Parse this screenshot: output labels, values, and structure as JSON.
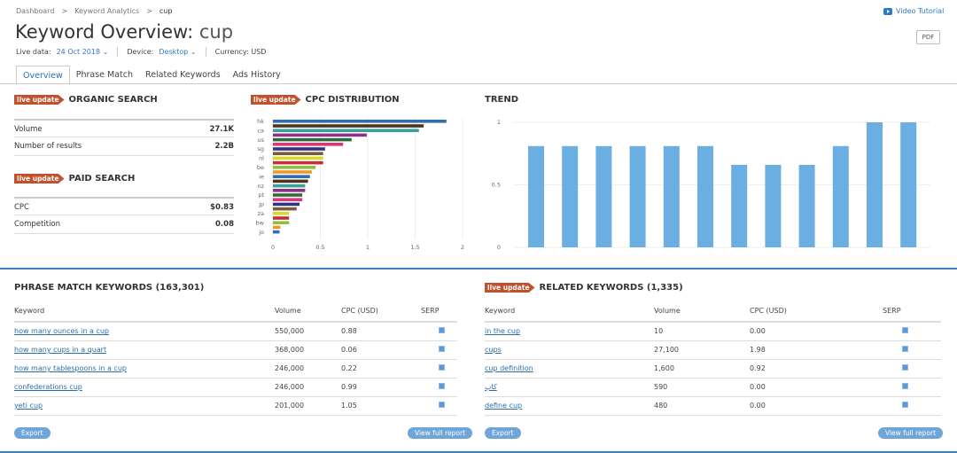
{
  "breadcrumb": [
    "Dashboard",
    "Keyword Analytics",
    "cup"
  ],
  "header": {
    "title_prefix": "Keyword Overview:",
    "keyword": "cup",
    "live_data_label": "Live data:",
    "live_data_value": "24 Oct 2018",
    "device_label": "Device:",
    "device_value": "Desktop",
    "currency": "Currency: USD",
    "video_tutorial": "Video Tutorial",
    "pdf": "PDF"
  },
  "tabs": [
    "Overview",
    "Phrase Match",
    "Related Keywords",
    "Ads History"
  ],
  "badge": "live update",
  "organic": {
    "title": "ORGANIC SEARCH",
    "rows": [
      {
        "label": "Volume",
        "value": "27.1K"
      },
      {
        "label": "Number of results",
        "value": "2.2B"
      }
    ]
  },
  "paid": {
    "title": "PAID SEARCH",
    "rows": [
      {
        "label": "CPC",
        "value": "$0.83"
      },
      {
        "label": "Competition",
        "value": "0.08"
      }
    ]
  },
  "cpc_title": "CPC DISTRIBUTION",
  "trend_title": "TREND",
  "chart_data": [
    {
      "type": "bar",
      "orientation": "horizontal",
      "title": "CPC DISTRIBUTION",
      "categories": [
        "hk",
        "",
        "ca",
        "",
        "us",
        "",
        "sg",
        "",
        "nl",
        "",
        "be",
        "",
        "ie",
        "",
        "nz",
        "",
        "pt",
        "",
        "jp",
        "",
        "za",
        "",
        "bw",
        "",
        "jo"
      ],
      "values": [
        1.83,
        1.59,
        1.54,
        0.99,
        0.83,
        0.74,
        0.55,
        0.53,
        0.53,
        0.53,
        0.45,
        0.41,
        0.39,
        0.37,
        0.34,
        0.34,
        0.31,
        0.31,
        0.28,
        0.25,
        0.17,
        0.17,
        0.17,
        0.08,
        0.07
      ],
      "colors": [
        "#2f6db5",
        "#4d3319",
        "#35a39a",
        "#8e2f8e",
        "#2e6b3a",
        "#e0337a",
        "#2e3580",
        "#7a5a3a",
        "#d9d92a",
        "#c0303a",
        "#8fc03c",
        "#f0982a"
      ],
      "xlim": [
        0,
        2
      ],
      "xticks": [
        "0",
        "0.5",
        "1",
        "1.5",
        "2"
      ],
      "grid": true
    },
    {
      "type": "bar",
      "title": "TREND",
      "values": [
        0.81,
        0.81,
        0.81,
        0.81,
        0.81,
        0.81,
        0.66,
        0.66,
        0.66,
        0.81,
        1,
        1
      ],
      "ylim": [
        0,
        1
      ],
      "yticks": [
        "0",
        "0.5",
        "1"
      ],
      "color": "#6aaee2",
      "grid": true
    }
  ],
  "phrase": {
    "title": "PHRASE MATCH KEYWORDS (163,301)",
    "columns": [
      "Keyword",
      "Volume",
      "CPC (USD)",
      "SERP"
    ],
    "rows": [
      {
        "keyword": "how many ounces in a cup",
        "volume": "550,000",
        "cpc": "0.88"
      },
      {
        "keyword": "how many cups in a quart",
        "volume": "368,000",
        "cpc": "0.06"
      },
      {
        "keyword": "how many tablespoons in a cup",
        "volume": "246,000",
        "cpc": "0.22"
      },
      {
        "keyword": "confederations cup",
        "volume": "246,000",
        "cpc": "0.99"
      },
      {
        "keyword": "yeti cup",
        "volume": "201,000",
        "cpc": "1.05"
      }
    ],
    "export": "Export",
    "view_full": "View full report"
  },
  "related": {
    "title": "RELATED KEYWORDS (1,335)",
    "columns": [
      "Keyword",
      "Volume",
      "CPC (USD)",
      "SERP"
    ],
    "rows": [
      {
        "keyword": "in the cup",
        "volume": "10",
        "cpc": "0.00"
      },
      {
        "keyword": "cups",
        "volume": "27,100",
        "cpc": "1.98"
      },
      {
        "keyword": "cup definition",
        "volume": "1,600",
        "cpc": "0.92"
      },
      {
        "keyword": "کاپ",
        "volume": "590",
        "cpc": "0.00"
      },
      {
        "keyword": "define cup",
        "volume": "480",
        "cpc": "0.00"
      }
    ],
    "export": "Export",
    "view_full": "View full report"
  }
}
